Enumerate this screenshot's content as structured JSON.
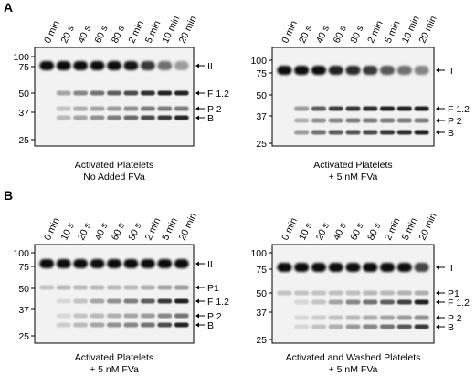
{
  "panels": {
    "A": {
      "letter": "A",
      "blots": [
        {
          "lanes": [
            "0 min",
            "20 s",
            "40 s",
            "60 s",
            "80 s",
            "2 min",
            "5 min",
            "10 min",
            "20 min"
          ],
          "markers": [
            "100",
            "75",
            "50",
            "37",
            "25"
          ],
          "bands": [
            "II",
            "F 1.2",
            "P 2",
            "B"
          ],
          "caption": [
            "Activated Platelets",
            "No Added FVa"
          ]
        },
        {
          "lanes": [
            "0 min",
            "20 s",
            "40 s",
            "60 s",
            "80 s",
            "2 min",
            "5 min",
            "10 min",
            "20 min"
          ],
          "markers": [
            "100",
            "75",
            "50",
            "37",
            "25"
          ],
          "bands": [
            "II",
            "F 1.2",
            "P 2",
            "B"
          ],
          "caption": [
            "Activated Platelets",
            "+ 5 nM FVa"
          ]
        }
      ]
    },
    "B": {
      "letter": "B",
      "blots": [
        {
          "lanes": [
            "0 min",
            "10 s",
            "20 s",
            "40 s",
            "60 s",
            "80 s",
            "2 min",
            "5 min",
            "20 min"
          ],
          "markers": [
            "100",
            "75",
            "50",
            "37",
            "25"
          ],
          "bands": [
            "II",
            "P1",
            "F 1.2",
            "P 2",
            "B"
          ],
          "caption": [
            "Activated Platelets",
            "+ 5 nM FVa"
          ]
        },
        {
          "lanes": [
            "0 min",
            "10 s",
            "20 s",
            "40 s",
            "60 s",
            "80 s",
            "2 min",
            "5 min",
            "20 min"
          ],
          "markers": [
            "100",
            "75",
            "50",
            "37",
            "25"
          ],
          "bands": [
            "II",
            "P1",
            "F 1.2",
            "P 2",
            "B"
          ],
          "caption": [
            "Activated and Washed Platelets",
            "+ 5 nM FVa"
          ]
        }
      ]
    }
  }
}
